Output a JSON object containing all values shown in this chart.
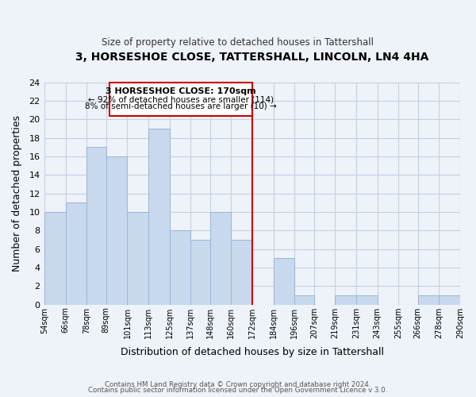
{
  "title": "3, HORSESHOE CLOSE, TATTERSHALL, LINCOLN, LN4 4HA",
  "subtitle": "Size of property relative to detached houses in Tattershall",
  "xlabel": "Distribution of detached houses by size in Tattershall",
  "ylabel": "Number of detached properties",
  "bin_edges": [
    54,
    66,
    78,
    89,
    101,
    113,
    125,
    137,
    148,
    160,
    172,
    184,
    196,
    207,
    219,
    231,
    243,
    255,
    266,
    278,
    290
  ],
  "bin_labels": [
    "54sqm",
    "66sqm",
    "78sqm",
    "89sqm",
    "101sqm",
    "113sqm",
    "125sqm",
    "137sqm",
    "148sqm",
    "160sqm",
    "172sqm",
    "184sqm",
    "196sqm",
    "207sqm",
    "219sqm",
    "231sqm",
    "243sqm",
    "255sqm",
    "266sqm",
    "278sqm",
    "290sqm"
  ],
  "counts": [
    10,
    11,
    17,
    16,
    10,
    19,
    8,
    7,
    10,
    7,
    0,
    5,
    1,
    0,
    1,
    1,
    0,
    0,
    1,
    1
  ],
  "bar_color": "#c8d9ed",
  "bar_edgecolor": "#9ab5d5",
  "reference_line_x": 172,
  "reference_line_color": "#cc0000",
  "ylim": [
    0,
    24
  ],
  "yticks": [
    0,
    2,
    4,
    6,
    8,
    10,
    12,
    14,
    16,
    18,
    20,
    22,
    24
  ],
  "annotation_title": "3 HORSESHOE CLOSE: 170sqm",
  "annotation_line1": "← 92% of detached houses are smaller (114)",
  "annotation_line2": "8% of semi-detached houses are larger (10) →",
  "annotation_box_edgecolor": "#cc0000",
  "footer_line1": "Contains HM Land Registry data © Crown copyright and database right 2024.",
  "footer_line2": "Contains public sector information licensed under the Open Government Licence v 3.0.",
  "background_color": "#eef2f9",
  "grid_color": "#c8d0de"
}
